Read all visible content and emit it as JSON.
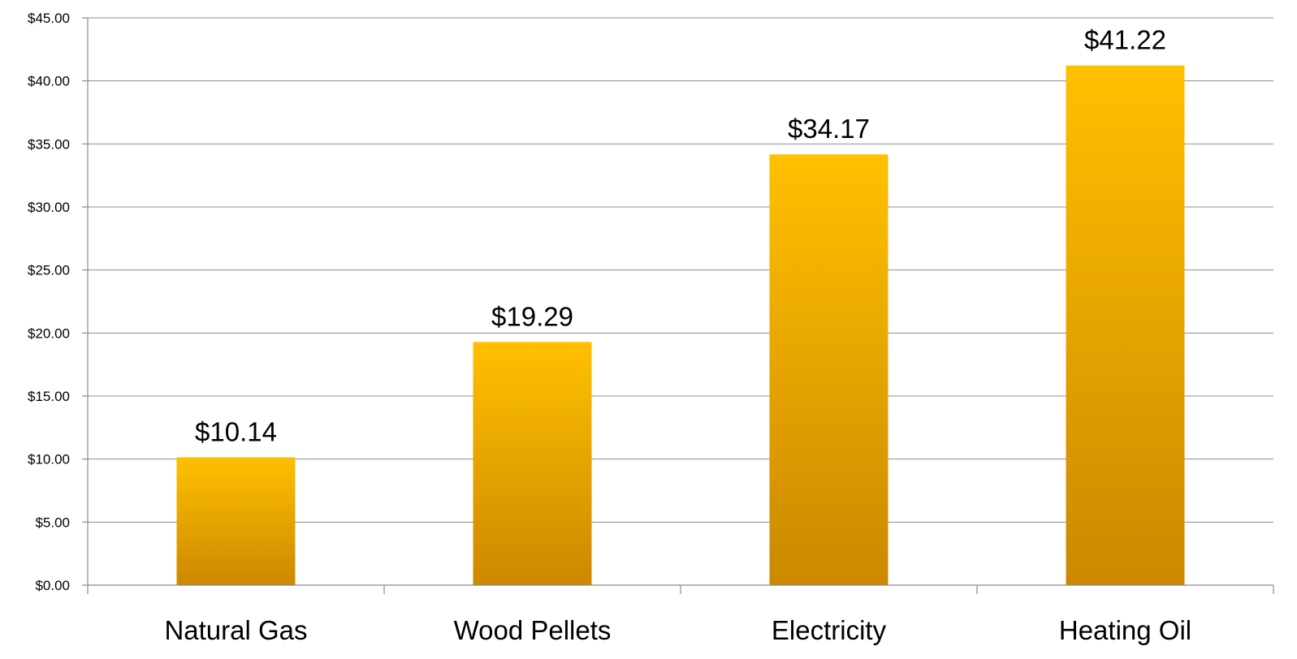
{
  "chart_data": {
    "type": "bar",
    "categories": [
      "Natural Gas",
      "Wood Pellets",
      "Electricity",
      "Heating Oil"
    ],
    "values": [
      10.14,
      19.29,
      34.17,
      41.22
    ],
    "data_labels": [
      "$10.14",
      "$19.29",
      "$34.17",
      "$41.22"
    ],
    "title": "",
    "xlabel": "",
    "ylabel": "",
    "ylim": [
      0,
      45
    ],
    "yticks": [
      0,
      5,
      10,
      15,
      20,
      25,
      30,
      35,
      40,
      45
    ],
    "ytick_labels": [
      "$0.00",
      "$5.00",
      "$10.00",
      "$15.00",
      "$20.00",
      "$25.00",
      "$30.00",
      "$35.00",
      "$40.00",
      "$45.00"
    ],
    "grid": true,
    "legend": "none",
    "bar_color_top": "#ffc000",
    "bar_color_bottom": "#cc8800",
    "grid_color": "#8c8c8c"
  }
}
